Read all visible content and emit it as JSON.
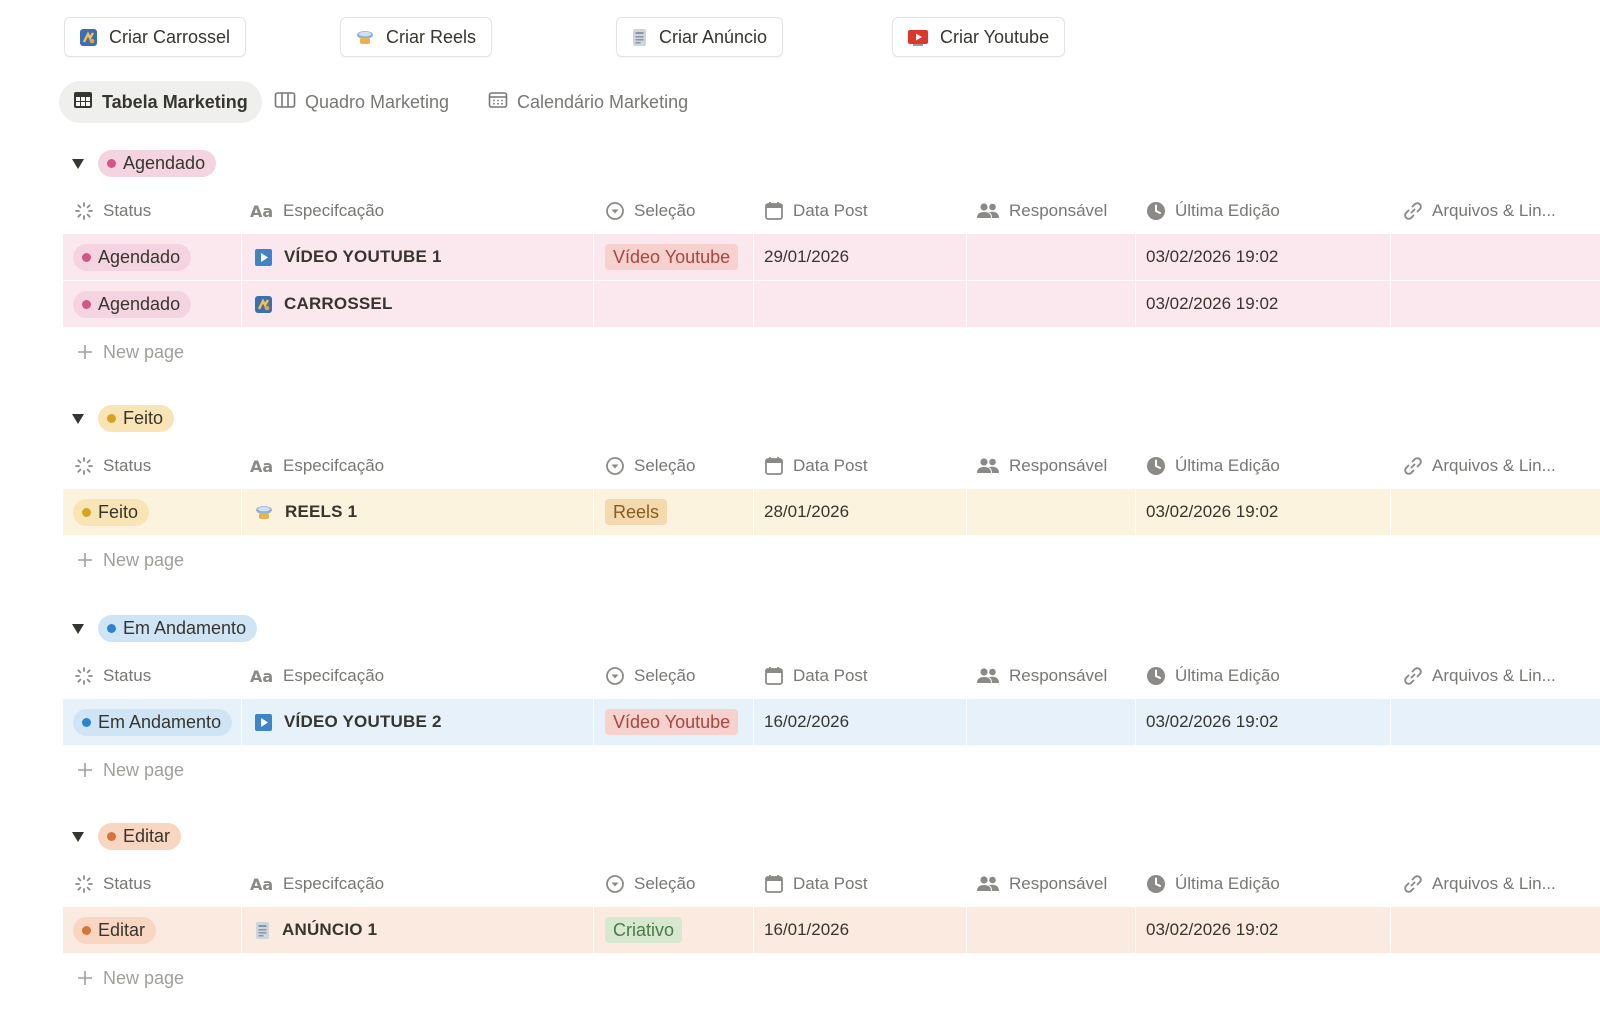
{
  "top_buttons": [
    {
      "label": "Criar Carrossel",
      "icon": "carousel-icon"
    },
    {
      "label": "Criar Reels",
      "icon": "reels-icon"
    },
    {
      "label": "Criar Anúncio",
      "icon": "ad-icon"
    },
    {
      "label": "Criar Youtube",
      "icon": "youtube-icon"
    }
  ],
  "tabs": [
    {
      "label": "Tabela Marketing",
      "icon": "table-icon",
      "active": true
    },
    {
      "label": "Quadro Marketing",
      "icon": "board-icon",
      "active": false
    },
    {
      "label": "Calendário Marketing",
      "icon": "calendar-icon",
      "active": false
    }
  ],
  "columns": {
    "status": "Status",
    "spec": "Especifcação",
    "selection": "Seleção",
    "date": "Data Post",
    "owner": "Responsável",
    "edited": "Última Edição",
    "files": "Arquivos & Lin..."
  },
  "new_page_label": "New page",
  "colors": {
    "agendado_bg": "#fbe8ef",
    "agendado_tag": "#f4d4e1",
    "agendado_dot": "#d1568a",
    "feito_bg": "#fbf3dd",
    "feito_tag": "#f8e4b4",
    "feito_dot": "#d8a323",
    "andamento_bg": "#e6f1fa",
    "andamento_tag": "#cfe5f6",
    "andamento_dot": "#2b83d0",
    "editar_bg": "#fbeadf",
    "editar_tag": "#f8d6c2",
    "editar_dot": "#d8733a"
  },
  "groups": [
    {
      "name": "Agendado",
      "rows": [
        {
          "status": "Agendado",
          "title": "VÍDEO YOUTUBE 1",
          "icon": "youtube-play-icon",
          "selection": "Vídeo Youtube",
          "date": "29/01/2026",
          "owner": "",
          "edited": "03/02/2026 19:02",
          "files": ""
        },
        {
          "status": "Agendado",
          "title": "CARROSSEL",
          "icon": "carousel-icon",
          "selection": "",
          "date": "",
          "owner": "",
          "edited": "03/02/2026 19:02",
          "files": ""
        }
      ]
    },
    {
      "name": "Feito",
      "rows": [
        {
          "status": "Feito",
          "title": "REELS 1",
          "icon": "reels-icon",
          "selection": "Reels",
          "date": "28/01/2026",
          "owner": "",
          "edited": "03/02/2026 19:02",
          "files": ""
        }
      ]
    },
    {
      "name": "Em Andamento",
      "rows": [
        {
          "status": "Em Andamento",
          "title": "VÍDEO YOUTUBE 2",
          "icon": "youtube-play-icon",
          "selection": "Vídeo Youtube",
          "date": "16/02/2026",
          "owner": "",
          "edited": "03/02/2026 19:02",
          "files": ""
        }
      ]
    },
    {
      "name": "Editar",
      "rows": [
        {
          "status": "Editar",
          "title": "ANÚNCIO 1",
          "icon": "ad-icon",
          "selection": "Criativo",
          "date": "16/01/2026",
          "owner": "",
          "edited": "03/02/2026 19:02",
          "files": ""
        }
      ]
    }
  ]
}
